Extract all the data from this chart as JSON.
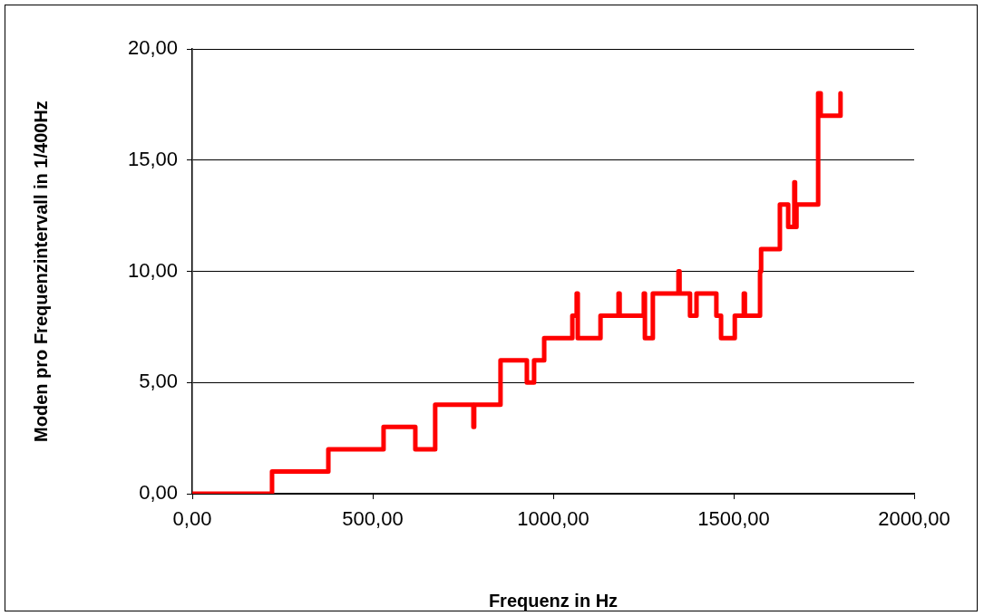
{
  "chart_data": {
    "type": "step",
    "xlabel": "Frequenz in Hz",
    "ylabel": "Moden pro Frequenzintervall in 1/400Hz",
    "x": [
      0,
      221,
      377,
      530,
      618,
      673,
      779,
      781,
      854,
      927,
      947,
      975,
      1053,
      1065,
      1068,
      1131,
      1181,
      1184,
      1251,
      1254,
      1276,
      1347,
      1350,
      1379,
      1397,
      1452,
      1465,
      1503,
      1528,
      1531,
      1573,
      1576,
      1628,
      1651,
      1668,
      1670,
      1674,
      1734,
      1741,
      1796
    ],
    "series": [
      {
        "color": "#ff0000",
        "values": [
          0,
          1,
          2,
          3,
          2,
          4,
          3,
          4,
          6,
          5,
          6,
          7,
          8,
          9,
          7,
          8,
          9,
          8,
          9,
          7,
          9,
          10,
          9,
          8,
          9,
          8,
          7,
          8,
          9,
          8,
          10,
          11,
          13,
          12,
          14,
          12,
          13,
          18,
          17,
          18
        ]
      }
    ],
    "xlim": [
      0,
      2000
    ],
    "xticks": [
      {
        "value": 0,
        "label": "0,00"
      },
      {
        "value": 500,
        "label": "500,00"
      },
      {
        "value": 1000,
        "label": "1000,00"
      },
      {
        "value": 1500,
        "label": "1500,00"
      },
      {
        "value": 2000,
        "label": "2000,00"
      }
    ],
    "ylim": [
      0,
      20
    ],
    "yticks": [
      {
        "value": 0,
        "label": "0,00"
      },
      {
        "value": 5,
        "label": "5,00"
      },
      {
        "value": 10,
        "label": "10,00"
      },
      {
        "value": 15,
        "label": "15,00"
      },
      {
        "value": 20,
        "label": "20,00"
      }
    ],
    "grid": "y",
    "legend": false,
    "marker": "none",
    "line_style": "solid"
  }
}
